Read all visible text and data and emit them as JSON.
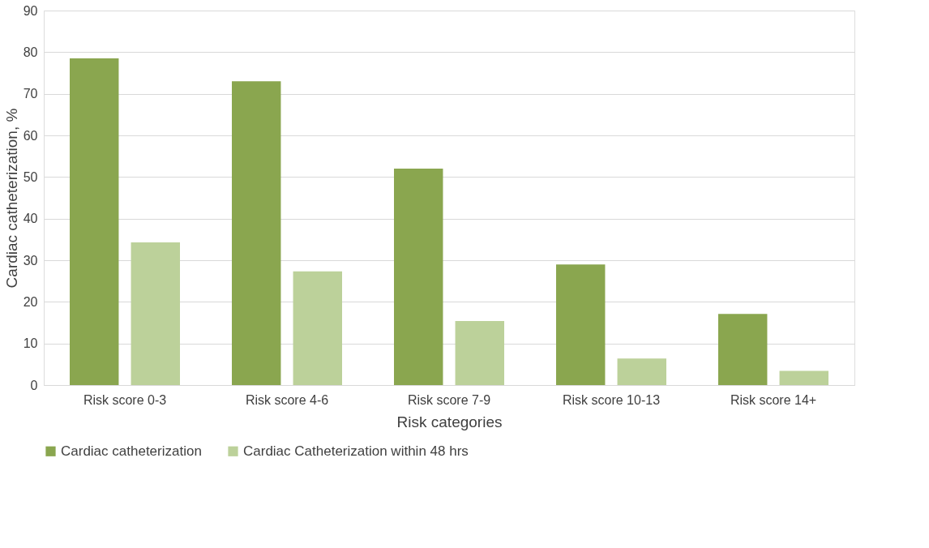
{
  "chart_data": {
    "type": "bar",
    "xlabel": "Risk categories",
    "ylabel": "Cardiac catheterization, %",
    "categories": [
      "Risk score 0-3",
      "Risk score 4-6",
      "Risk score 7-9",
      "Risk score 10-13",
      "Risk score 14+"
    ],
    "series": [
      {
        "name": "Cardiac catheterization",
        "color": "#8aa64f",
        "values": [
          78.5,
          73,
          52,
          29,
          17.1
        ]
      },
      {
        "name": "Cardiac Catheterization within 48 hrs",
        "color": "#bcd19a",
        "values": [
          34.3,
          27.3,
          15.4,
          6.4,
          3.4
        ]
      }
    ],
    "ylim": [
      0,
      90
    ],
    "yticks": [
      0,
      10,
      20,
      30,
      40,
      50,
      60,
      70,
      80,
      90
    ],
    "grid": "y",
    "legend": "bottom"
  }
}
